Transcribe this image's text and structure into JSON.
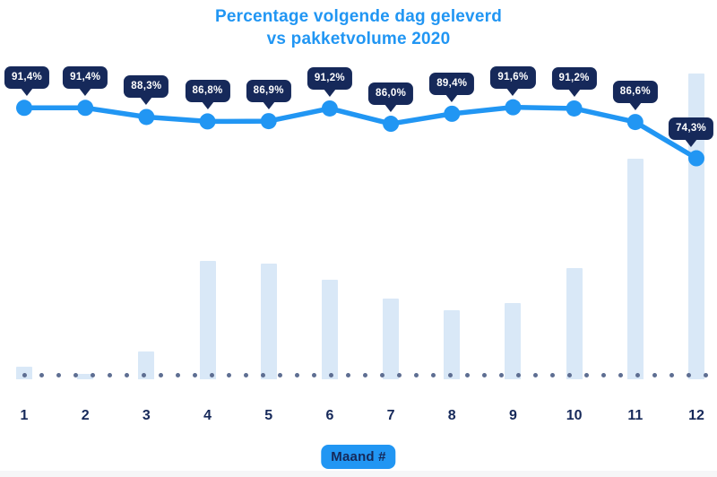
{
  "title": {
    "line1": "Percentage volgende dag geleverd",
    "line2": "vs pakketvolume 2020"
  },
  "x_axis": {
    "badge_label": "Maand #",
    "ticks": [
      "1",
      "2",
      "3",
      "4",
      "5",
      "6",
      "7",
      "8",
      "9",
      "10",
      "11",
      "12"
    ]
  },
  "chart_data": {
    "type": "line",
    "combo": "line over background bars",
    "title": "Percentage volgende dag geleverd vs pakketvolume 2020",
    "x": [
      1,
      2,
      3,
      4,
      5,
      6,
      7,
      8,
      9,
      10,
      11,
      12
    ],
    "xlabel": "Maand #",
    "ylabel": "",
    "legend_position": "none",
    "gridlines": "none",
    "baseline_style": "dotted",
    "series": [
      {
        "name": "Percentage volgende dag geleverd",
        "type": "line",
        "unit": "%",
        "values": [
          91.4,
          91.4,
          88.3,
          86.8,
          86.9,
          91.2,
          86.0,
          89.4,
          91.6,
          91.2,
          86.6,
          74.3
        ],
        "labels": [
          "91,4%",
          "91,4%",
          "88,3%",
          "86,8%",
          "86,9%",
          "91,2%",
          "86,0%",
          "89,4%",
          "91,6%",
          "91,2%",
          "86,6%",
          "74,3%"
        ]
      },
      {
        "name": "Pakketvolume",
        "type": "bar",
        "unit": "relative volume (no value axis shown, max month = 100)",
        "values": [
          4.1,
          1.8,
          9.1,
          38.7,
          37.8,
          32.6,
          26.4,
          22.6,
          24.9,
          36.4,
          72.1,
          100
        ]
      }
    ]
  },
  "colors": {
    "accent_blue": "#2196F3",
    "navy": "#16295A",
    "bar_fill": "#D9E8F7",
    "baseline_dot": "#5E6E92",
    "background": "#FFFFFF",
    "tooltip_text": "#FFFFFF",
    "bottom_strip": "#F6F6F7"
  }
}
